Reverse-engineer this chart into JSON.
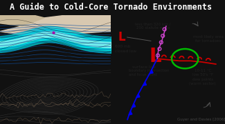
{
  "title": "A Guide to Cold-Core Tornado Environments",
  "title_fontsize": 8.5,
  "title_bg": "#111111",
  "title_color": "#ffffff",
  "bg_color": "#111111",
  "citation": "Guyer and Davies [2006]",
  "left_top_bg": "#7bbfea",
  "left_bot_bg": "#e8ddc8",
  "right_bg": "#e8e4d8",
  "L_small_color": "#cc0000",
  "L_large_color": "#cc0000",
  "cold_front_color": "#0000ee",
  "warm_front_color": "#cc0000",
  "dryline_color": "#cc44cc",
  "green_ellipse_color": "#00bb00",
  "text_color": "#222222"
}
